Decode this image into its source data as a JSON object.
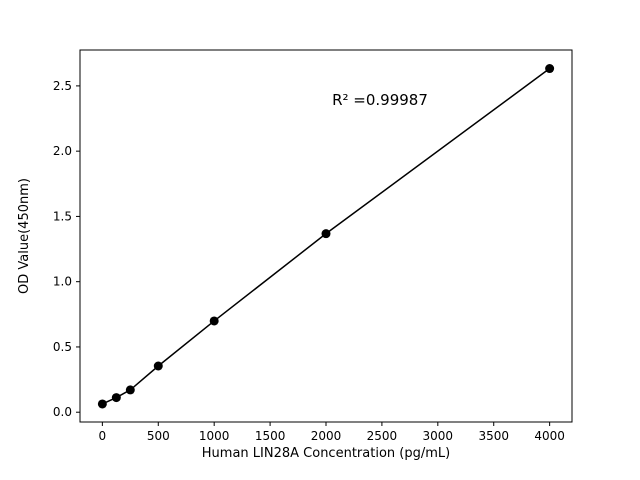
{
  "chart_data": {
    "type": "scatter",
    "title": "",
    "xlabel": "Human LIN28A Concentration (pg/mL)",
    "ylabel": "OD Value(450nm)",
    "annotation": "R² =0.99987",
    "x": [
      0,
      125,
      250,
      500,
      1000,
      2000,
      4000
    ],
    "y": [
      0.063,
      0.112,
      0.171,
      0.354,
      0.699,
      1.368,
      2.633
    ],
    "xticks": [
      0,
      500,
      1000,
      1500,
      2000,
      2500,
      3000,
      3500,
      4000
    ],
    "yticks": [
      0.0,
      0.5,
      1.0,
      1.5,
      2.0,
      2.5
    ],
    "xlim": [
      -200,
      4200
    ],
    "ylim": [
      -0.075,
      2.775
    ],
    "line": true,
    "legend": "none",
    "grid": false,
    "marker_color": "#000000",
    "line_color": "#000000",
    "background": "#ffffff"
  }
}
